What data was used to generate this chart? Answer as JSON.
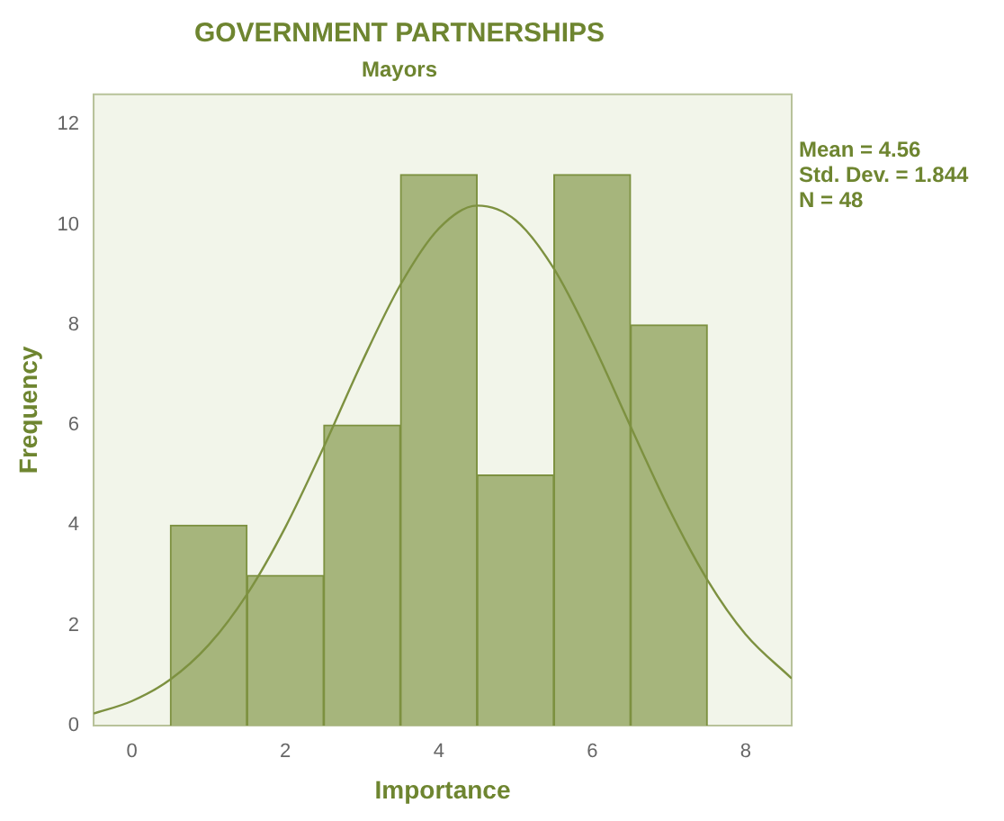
{
  "chart_data": {
    "type": "histogram",
    "title": "GOVERNMENT PARTNERSHIPS",
    "subtitle": "Mayors",
    "xlabel": "Importance",
    "ylabel": "Frequency",
    "bins": [
      0.5,
      1.5,
      2.5,
      3.5,
      4.5,
      5.5,
      6.5,
      7.5
    ],
    "values": [
      4,
      3,
      6,
      11,
      5,
      11,
      8
    ],
    "color": "#a6b57c",
    "series": [
      {
        "type": "line",
        "color": "#7d9140",
        "x": [
          -0.5,
          0,
          0.5,
          1,
          1.5,
          2,
          2.5,
          3,
          3.5,
          4,
          4.5,
          5,
          5.5,
          6,
          6.5,
          7,
          7.5,
          8,
          8.6
        ],
        "values": [
          0.24,
          0.49,
          0.92,
          1.61,
          2.62,
          3.96,
          5.56,
          7.26,
          8.8,
          9.92,
          10.38,
          10.09,
          9.12,
          7.65,
          5.97,
          4.33,
          2.91,
          1.82,
          0.94
        ]
      }
    ],
    "xlim": [
      -0.5,
      8.6
    ],
    "xticks": [
      0,
      2,
      4,
      6,
      8
    ],
    "ylim": [
      0,
      12.6
    ],
    "yticks": [
      0,
      2,
      4,
      6,
      8,
      10,
      12
    ],
    "grid": false,
    "legend": false,
    "annotations": [
      "Mean = 4.56",
      "Std. Dev. = 1.844",
      "N = 48"
    ]
  }
}
